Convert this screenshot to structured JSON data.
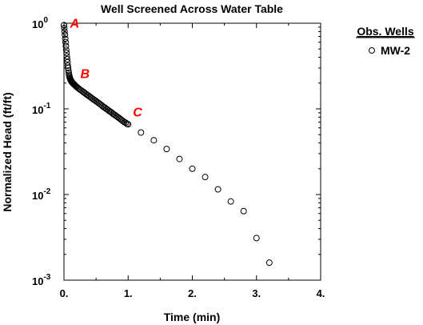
{
  "chart_data": {
    "type": "scatter",
    "title": "Well Screened Across Water Table",
    "xlabel": "Time (min)",
    "ylabel": "Normalized Head (ft/ft)",
    "xlim": [
      0,
      4
    ],
    "ylim": [
      0.001,
      1
    ],
    "yscale": "log",
    "grid": false,
    "legend_position": "right",
    "x_tick_labels": [
      "0.",
      "1.",
      "2.",
      "3.",
      "4."
    ],
    "y_tick_labels": [
      {
        "base": "10",
        "exp": "0",
        "value": 1
      },
      {
        "base": "10",
        "exp": "-1",
        "value": 0.1
      },
      {
        "base": "10",
        "exp": "-2",
        "value": 0.01
      },
      {
        "base": "10",
        "exp": "-3",
        "value": 0.001
      }
    ],
    "legend": {
      "title": "Obs. Wells",
      "items": [
        {
          "name": "MW-2",
          "marker": "open-circle"
        }
      ]
    },
    "annotations": [
      {
        "text": "A",
        "x": 0.02,
        "y": 0.93
      },
      {
        "text": "B",
        "x": 0.18,
        "y": 0.24
      },
      {
        "text": "C",
        "x": 1.0,
        "y": 0.085
      }
    ],
    "series": [
      {
        "name": "MW-2",
        "x": [
          0.0,
          0.005,
          0.01,
          0.015,
          0.02,
          0.025,
          0.03,
          0.035,
          0.04,
          0.045,
          0.05,
          0.055,
          0.06,
          0.065,
          0.07,
          0.075,
          0.08,
          0.085,
          0.09,
          0.095,
          0.1,
          0.105,
          0.11,
          0.115,
          0.12,
          0.125,
          0.13,
          0.135,
          0.14,
          0.145,
          0.15,
          0.155,
          0.16,
          0.17,
          0.18,
          0.19,
          0.2,
          0.22,
          0.24,
          0.26,
          0.28,
          0.3,
          0.32,
          0.34,
          0.36,
          0.38,
          0.4,
          0.42,
          0.44,
          0.46,
          0.48,
          0.5,
          0.52,
          0.54,
          0.56,
          0.58,
          0.6,
          0.62,
          0.64,
          0.66,
          0.68,
          0.7,
          0.72,
          0.74,
          0.76,
          0.78,
          0.8,
          0.82,
          0.84,
          0.86,
          0.88,
          0.9,
          0.92,
          0.94,
          0.96,
          0.98,
          1.0,
          1.2,
          1.4,
          1.6,
          1.8,
          2.0,
          2.2,
          2.4,
          2.6,
          2.8,
          3.0,
          3.2
        ],
        "y": [
          0.95,
          0.88,
          0.8,
          0.73,
          0.66,
          0.6,
          0.54,
          0.49,
          0.45,
          0.41,
          0.38,
          0.35,
          0.32,
          0.3,
          0.28,
          0.265,
          0.25,
          0.24,
          0.232,
          0.226,
          0.221,
          0.217,
          0.213,
          0.21,
          0.207,
          0.205,
          0.203,
          0.201,
          0.199,
          0.197,
          0.196,
          0.194,
          0.192,
          0.189,
          0.186,
          0.183,
          0.18,
          0.175,
          0.17,
          0.166,
          0.162,
          0.158,
          0.154,
          0.15,
          0.146,
          0.143,
          0.139,
          0.136,
          0.132,
          0.129,
          0.126,
          0.123,
          0.12,
          0.117,
          0.114,
          0.111,
          0.108,
          0.105,
          0.103,
          0.1,
          0.098,
          0.095,
          0.093,
          0.091,
          0.088,
          0.086,
          0.084,
          0.082,
          0.08,
          0.078,
          0.076,
          0.074,
          0.072,
          0.07,
          0.069,
          0.067,
          0.066,
          0.053,
          0.043,
          0.034,
          0.026,
          0.02,
          0.016,
          0.0115,
          0.0083,
          0.0064,
          0.0031,
          0.0016
        ]
      }
    ]
  }
}
